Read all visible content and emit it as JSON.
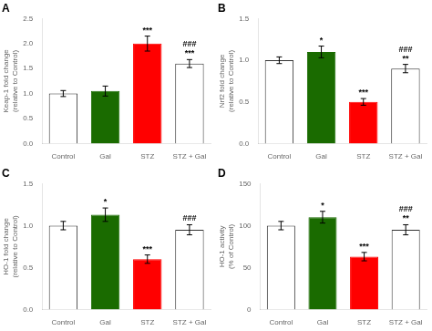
{
  "chart_data": [
    {
      "type": "bar",
      "title": "A",
      "ylabel": "Keap-1 fold change\n(relative to Control)",
      "categories": [
        "Control",
        "Gal",
        "STZ",
        "STZ + Gal"
      ],
      "values": [
        1.0,
        1.05,
        2.0,
        1.6
      ],
      "errors": [
        0.06,
        0.1,
        0.15,
        0.08
      ],
      "colors": [
        "#ffffff",
        "#1a6b00",
        "#ff0000",
        "#ffffff"
      ],
      "ylim": [
        0,
        2.5
      ],
      "yticks": [
        {
          "value": 0,
          "label": "0.0"
        },
        {
          "value": 0.5,
          "label": "0.5"
        },
        {
          "value": 1,
          "label": "1.0"
        },
        {
          "value": 1.5,
          "label": "1.5"
        },
        {
          "value": 2,
          "label": "2.0"
        },
        {
          "value": 2.5,
          "label": "2.5"
        }
      ],
      "grid": false,
      "annotations": [
        {
          "category": "STZ",
          "text": "***"
        },
        {
          "category": "STZ + Gal",
          "text": "***"
        },
        {
          "category": "STZ + Gal",
          "text": "###"
        }
      ]
    },
    {
      "type": "bar",
      "title": "B",
      "ylabel": "Nrf2 fold change\n(relative to Control)",
      "categories": [
        "Control",
        "Gal",
        "STZ",
        "STZ + Gal"
      ],
      "values": [
        1.0,
        1.1,
        0.5,
        0.9
      ],
      "errors": [
        0.04,
        0.07,
        0.04,
        0.05
      ],
      "colors": [
        "#ffffff",
        "#1a6b00",
        "#ff0000",
        "#ffffff"
      ],
      "ylim": [
        0,
        1.5
      ],
      "yticks": [
        {
          "value": 0,
          "label": "0.0"
        },
        {
          "value": 0.5,
          "label": "0.5"
        },
        {
          "value": 1,
          "label": "1.0"
        },
        {
          "value": 1.5,
          "label": "1.5"
        }
      ],
      "grid": false,
      "annotations": [
        {
          "category": "Gal",
          "text": "*"
        },
        {
          "category": "STZ",
          "text": "***"
        },
        {
          "category": "STZ + Gal",
          "text": "**"
        },
        {
          "category": "STZ + Gal",
          "text": "###"
        }
      ]
    },
    {
      "type": "bar",
      "title": "C",
      "ylabel": "HO-1 fold change\n(relative to Control)",
      "categories": [
        "Control",
        "Gal",
        "STZ",
        "STZ + Gal"
      ],
      "values": [
        1.0,
        1.13,
        0.6,
        0.95
      ],
      "errors": [
        0.05,
        0.08,
        0.05,
        0.06
      ],
      "colors": [
        "#ffffff",
        "#1a6b00",
        "#ff0000",
        "#ffffff"
      ],
      "ylim": [
        0,
        1.5
      ],
      "yticks": [
        {
          "value": 0,
          "label": "0.0"
        },
        {
          "value": 0.5,
          "label": "0.5"
        },
        {
          "value": 1,
          "label": "1.0"
        },
        {
          "value": 1.5,
          "label": "1.5"
        }
      ],
      "grid": false,
      "annotations": [
        {
          "category": "Gal",
          "text": "*"
        },
        {
          "category": "STZ",
          "text": "***"
        },
        {
          "category": "STZ + Gal",
          "text": "###"
        }
      ]
    },
    {
      "type": "bar",
      "title": "D",
      "ylabel": "HO-1 activity\n(% of Control)",
      "categories": [
        "Control",
        "Gal",
        "STZ",
        "STZ + Gal"
      ],
      "values": [
        100,
        110,
        63,
        95
      ],
      "errors": [
        5,
        7,
        5,
        6
      ],
      "colors": [
        "#ffffff",
        "#1a6b00",
        "#ff0000",
        "#ffffff"
      ],
      "ylim": [
        0,
        150
      ],
      "yticks": [
        0,
        50,
        100,
        150
      ],
      "grid": false,
      "annotations": [
        {
          "category": "Gal",
          "text": "*"
        },
        {
          "category": "STZ",
          "text": "***"
        },
        {
          "category": "STZ + Gal",
          "text": "**"
        },
        {
          "category": "STZ + Gal",
          "text": "###"
        }
      ]
    }
  ]
}
